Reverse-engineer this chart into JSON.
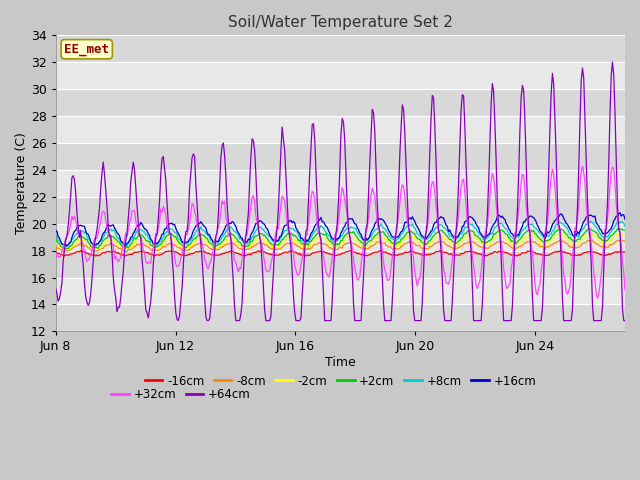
{
  "title": "Soil/Water Temperature Set 2",
  "xlabel": "Time",
  "ylabel": "Temperature (C)",
  "ylim": [
    12,
    34
  ],
  "yticks": [
    12,
    14,
    16,
    18,
    20,
    22,
    24,
    26,
    28,
    30,
    32,
    34
  ],
  "n_days": 19,
  "n_points_per_day": 24,
  "series_colors": {
    "-16cm": "#ff0000",
    "-8cm": "#ff8800",
    "-2cm": "#ffff00",
    "+2cm": "#00cc00",
    "+8cm": "#00cccc",
    "+16cm": "#0000cc",
    "+32cm": "#ff44ff",
    "+64cm": "#8800bb"
  },
  "series_order": [
    "-16cm",
    "-8cm",
    "-2cm",
    "+2cm",
    "+8cm",
    "+16cm",
    "+32cm",
    "+64cm"
  ],
  "watermark_text": "EE_met",
  "watermark_fg": "#990000",
  "watermark_bg": "#ffffcc",
  "fig_facecolor": "#c8c8c8",
  "ax_facecolor": "#e0e0e0",
  "grid_color": "#ffffff",
  "xtick_labels": [
    "Jun 8",
    "Jun 12",
    "Jun 16",
    "Jun 20",
    "Jun 24"
  ],
  "xtick_day_offsets": [
    0,
    4,
    8,
    12,
    16
  ],
  "legend_order": [
    "-16cm",
    "-8cm",
    "-2cm",
    "+2cm",
    "+8cm",
    "+16cm",
    "+32cm",
    "+64cm"
  ]
}
